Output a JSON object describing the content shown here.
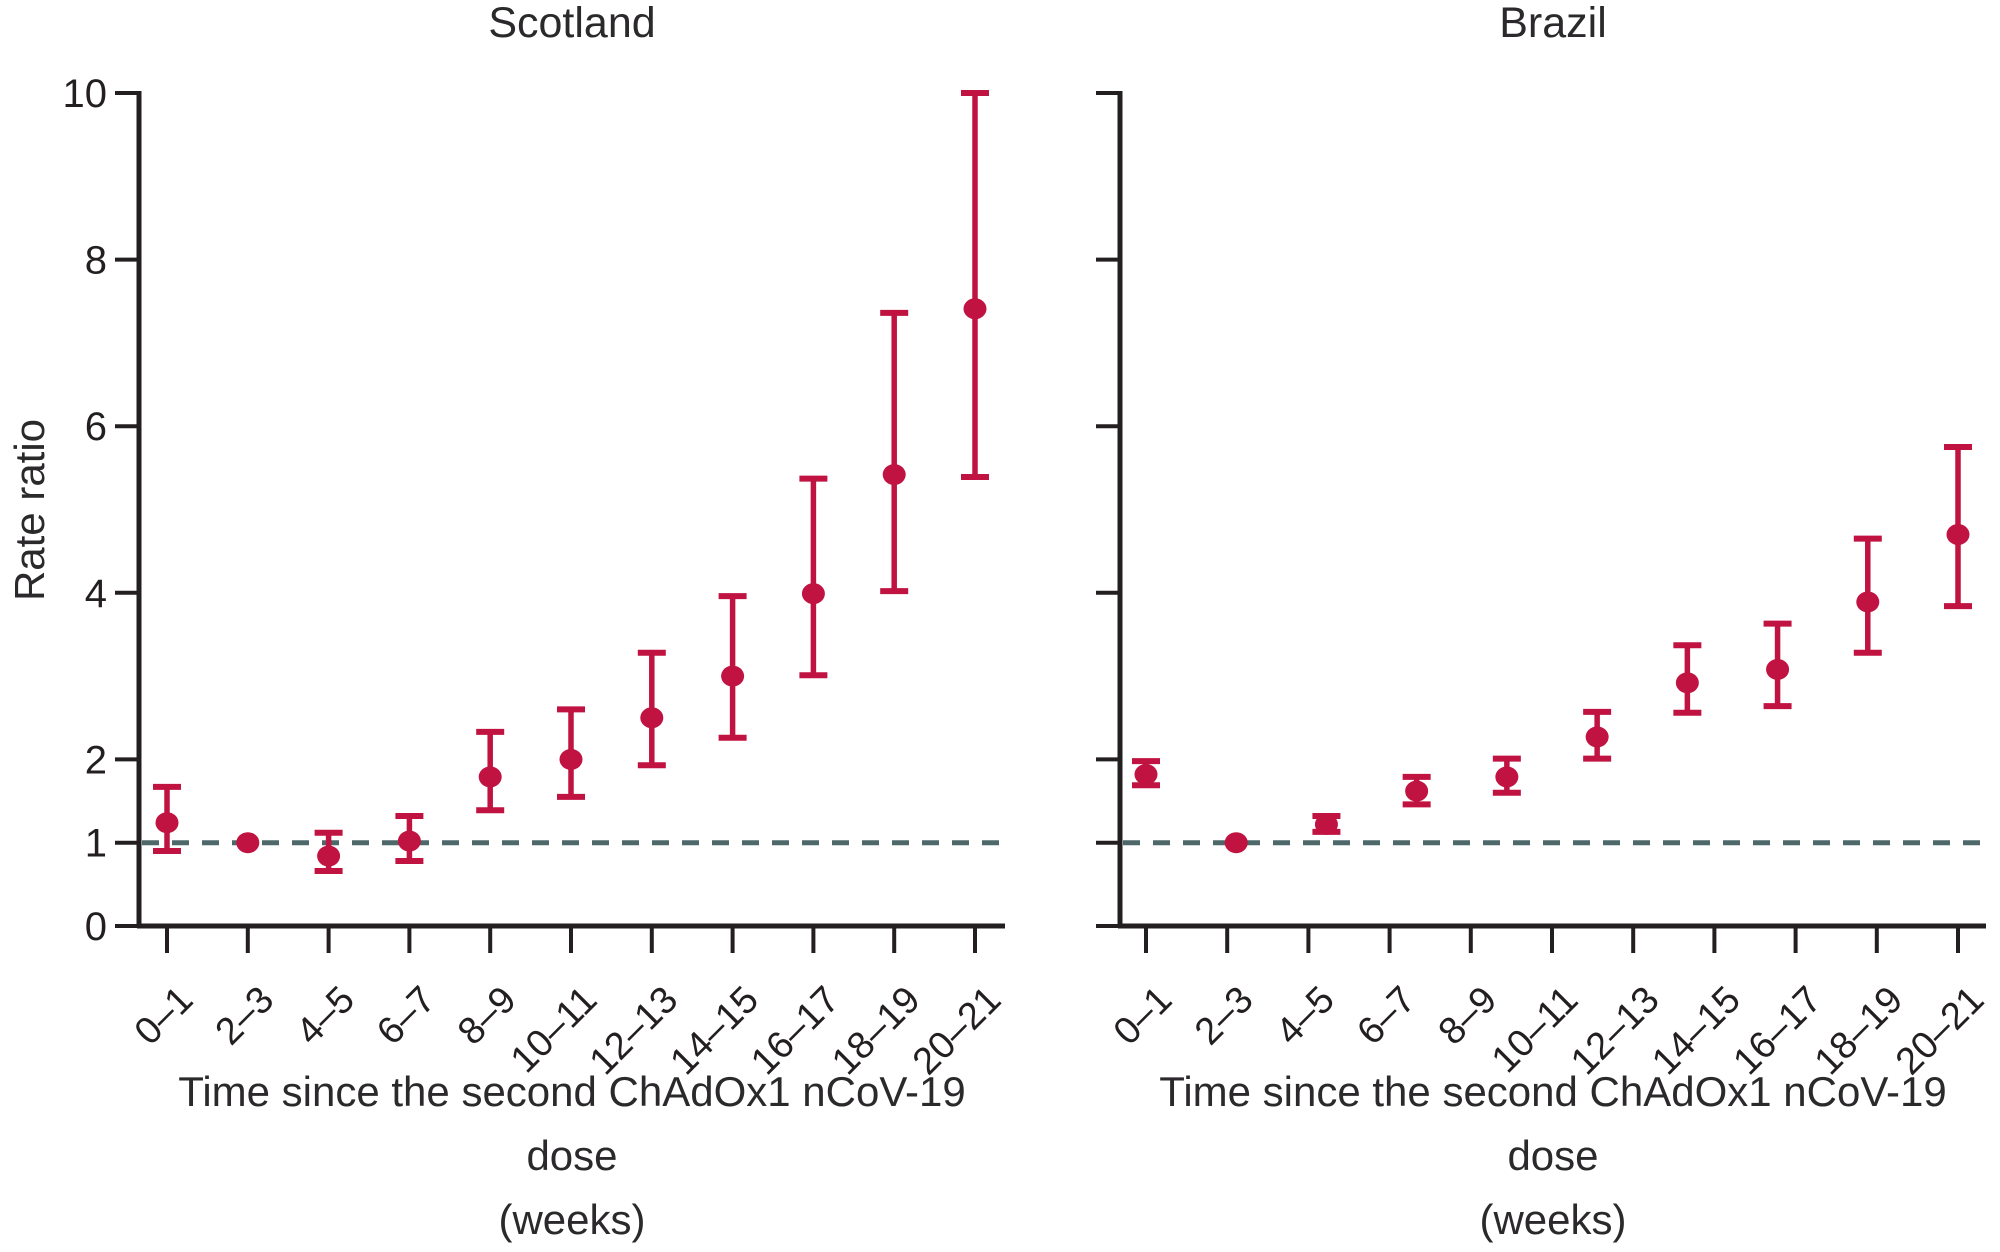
{
  "figure": {
    "y_axis_title": "Rate ratio",
    "colors": {
      "point_red": "#c01341",
      "reference_line_teal": "#4e686a",
      "axis_black": "#231f20"
    }
  },
  "chart_data": [
    {
      "type": "scatter",
      "title": "Scotland",
      "ylabel": "Rate ratio",
      "xlabel_line1": "Time since the second ChAdOx1 nCoV-19 dose",
      "xlabel_line2": "(weeks)",
      "ylim": [
        0,
        10
      ],
      "yticks": [
        0,
        1,
        2,
        4,
        6,
        8,
        10
      ],
      "grid": false,
      "reference_line_y": 1,
      "categories": [
        "0–1",
        "2–3",
        "4–5",
        "6–7",
        "8–9",
        "10–11",
        "12–13",
        "14–15",
        "16–17",
        "18–19",
        "20–21"
      ],
      "points": [
        {
          "week": "0–1",
          "rr": 1.24,
          "lo": 0.9,
          "hi": 1.67,
          "x_frac": 0.0
        },
        {
          "week": "2–3",
          "rr": 1.0,
          "lo": null,
          "hi": null,
          "x_frac": 0.1,
          "reference": true
        },
        {
          "week": "4–5",
          "rr": 0.84,
          "lo": 0.66,
          "hi": 1.12,
          "x_frac": 0.2
        },
        {
          "week": "6–7",
          "rr": 1.02,
          "lo": 0.78,
          "hi": 1.32,
          "x_frac": 0.3
        },
        {
          "week": "8–9",
          "rr": 1.79,
          "lo": 1.39,
          "hi": 2.33,
          "x_frac": 0.4
        },
        {
          "week": "10–11",
          "rr": 2.0,
          "lo": 1.55,
          "hi": 2.6,
          "x_frac": 0.5
        },
        {
          "week": "12–13",
          "rr": 2.5,
          "lo": 1.93,
          "hi": 3.28,
          "x_frac": 0.6
        },
        {
          "week": "14–15",
          "rr": 3.0,
          "lo": 2.26,
          "hi": 3.96,
          "x_frac": 0.7
        },
        {
          "week": "16–17",
          "rr": 3.99,
          "lo": 3.01,
          "hi": 5.37,
          "x_frac": 0.8
        },
        {
          "week": "18–19",
          "rr": 5.42,
          "lo": 4.02,
          "hi": 7.36,
          "x_frac": 0.9
        },
        {
          "week": "20–21",
          "rr": 7.41,
          "lo": 5.39,
          "hi": 10.0,
          "x_frac": 1.0
        }
      ]
    },
    {
      "type": "scatter",
      "title": "Brazil",
      "ylabel": "Rate ratio",
      "xlabel_line1": "Time since the second ChAdOx1 nCoV-19 dose",
      "xlabel_line2": "(weeks)",
      "ylim": [
        0,
        10
      ],
      "yticks": [
        0,
        1,
        2,
        4,
        6,
        8,
        10
      ],
      "y_tick_labels_shown": false,
      "grid": false,
      "reference_line_y": 1,
      "categories": [
        "0–1",
        "2–3",
        "4–5",
        "6–7",
        "8–9",
        "10–11",
        "12–13",
        "14–15",
        "16–17",
        "18–19",
        "20–21"
      ],
      "points_note": "10 plotted estimates spread evenly between the first and last tick",
      "points": [
        {
          "week": "0–1",
          "rr": 1.82,
          "lo": 1.69,
          "hi": 1.98,
          "x_frac": 0.0
        },
        {
          "week": "2–3",
          "rr": 1.0,
          "lo": null,
          "hi": null,
          "x_frac": 0.1111,
          "reference": true
        },
        {
          "week": "4–5",
          "rr": 1.22,
          "lo": 1.13,
          "hi": 1.32,
          "x_frac": 0.2222
        },
        {
          "week": "6–7",
          "rr": 1.62,
          "lo": 1.46,
          "hi": 1.79,
          "x_frac": 0.3333
        },
        {
          "week": "8–9",
          "rr": 1.79,
          "lo": 1.6,
          "hi": 2.01,
          "x_frac": 0.4444
        },
        {
          "week": "10–11",
          "rr": 2.27,
          "lo": 2.01,
          "hi": 2.57,
          "x_frac": 0.5556
        },
        {
          "week": "12–13",
          "rr": 2.92,
          "lo": 2.56,
          "hi": 3.37,
          "x_frac": 0.6667
        },
        {
          "week": "14–15",
          "rr": 3.08,
          "lo": 2.64,
          "hi": 3.63,
          "x_frac": 0.7778
        },
        {
          "week": "16–17",
          "rr": 3.89,
          "lo": 3.28,
          "hi": 4.65,
          "x_frac": 0.8889
        },
        {
          "week": "20–21",
          "rr": 4.7,
          "lo": 3.84,
          "hi": 5.75,
          "x_frac": 1.0
        }
      ]
    }
  ]
}
